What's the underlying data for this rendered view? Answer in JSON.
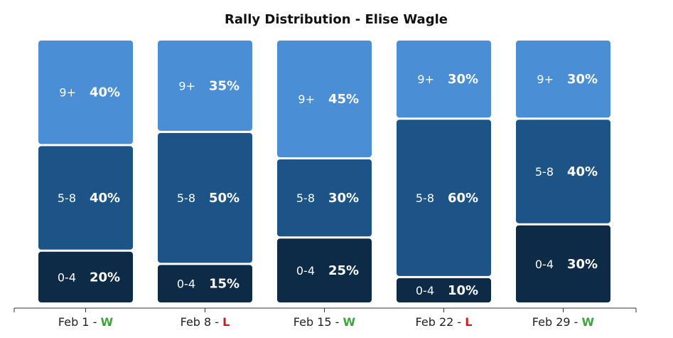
{
  "chart_data": {
    "type": "bar",
    "stacked": true,
    "title": "Rally Distribution - Elise Wagle",
    "categories": [
      "Feb 1",
      "Feb 8",
      "Feb 15",
      "Feb 22",
      "Feb 29"
    ],
    "results": [
      "W",
      "L",
      "W",
      "L",
      "W"
    ],
    "result_separator": " - ",
    "series": [
      {
        "name": "0-4",
        "color": "#0d2a47",
        "values": [
          20,
          15,
          25,
          10,
          30
        ]
      },
      {
        "name": "5-8",
        "color": "#1d5487",
        "values": [
          40,
          50,
          30,
          60,
          40
        ]
      },
      {
        "name": "9+",
        "color": "#4a8fd6",
        "values": [
          40,
          35,
          45,
          30,
          30
        ]
      }
    ],
    "value_suffix": "%",
    "result_colors": {
      "W": "#3aa63a",
      "L": "#d11a1a"
    },
    "ylim": [
      0,
      100
    ],
    "grid": false,
    "legend": false
  }
}
